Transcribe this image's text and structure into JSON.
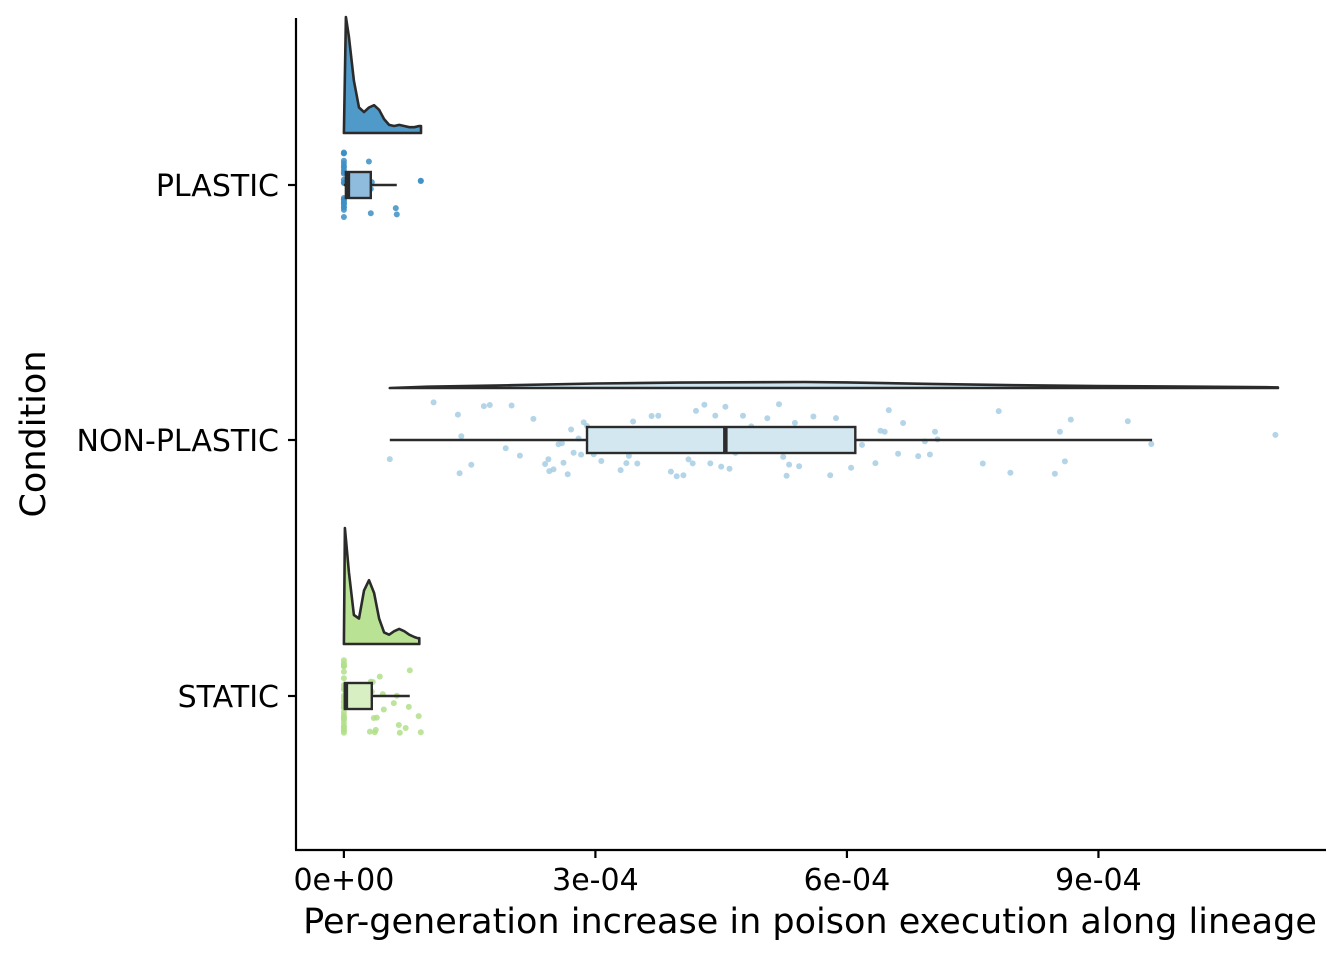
{
  "chart_data": {
    "type": "raincloud",
    "title": "",
    "xlabel": "Per-generation increase in poison execution along lineage",
    "ylabel": "Condition",
    "xlim": [
      -5.71e-05,
      0.0011714
    ],
    "x_ticks": [
      {
        "value": 0,
        "label": "0e+00"
      },
      {
        "value": 0.0003,
        "label": "3e-04"
      },
      {
        "value": 0.0006,
        "label": "6e-04"
      },
      {
        "value": 0.0009,
        "label": "9e-04"
      }
    ],
    "grid": false,
    "legend": "none",
    "series": [
      {
        "name": "PLASTIC",
        "color": "#3d8fc4",
        "box_fill": "#8fbcdd",
        "box": {
          "min": 0,
          "q1": 2.4e-06,
          "median": 4.8e-06,
          "q3": 3.21e-05,
          "max": 6.31e-05
        },
        "density": [
          [
            0,
            0
          ],
          [
            2.4e-06,
            1.0
          ],
          [
            6e-06,
            0.83
          ],
          [
            1.2e-05,
            0.45
          ],
          [
            1.8e-05,
            0.22
          ],
          [
            2.4e-05,
            0.18
          ],
          [
            3e-05,
            0.22
          ],
          [
            3.6e-05,
            0.24
          ],
          [
            4.2e-05,
            0.2
          ],
          [
            4.8e-05,
            0.12
          ],
          [
            5.4e-05,
            0.07
          ],
          [
            6e-05,
            0.06
          ],
          [
            6.6e-05,
            0.07
          ],
          [
            7.2e-05,
            0.06
          ],
          [
            7.8e-05,
            0.05
          ],
          [
            8.4e-05,
            0.05
          ],
          [
            9e-05,
            0.06
          ],
          [
            9.2e-05,
            0.06
          ],
          [
            9.2e-05,
            0
          ]
        ],
        "points": [
          0,
          0,
          0,
          0,
          0,
          0,
          0,
          0,
          0,
          0,
          0,
          0,
          0,
          0,
          0,
          0,
          0,
          0,
          0,
          0,
          0,
          0,
          0,
          0,
          3.21e-05,
          3.33e-05,
          3.21e-05,
          2.98e-05,
          6.19e-05,
          6.31e-05,
          9.17e-05,
          9.17e-05
        ]
      },
      {
        "name": "NON-PLASTIC",
        "color": "#a6cee3",
        "box_fill": "#d3e7f1",
        "box": {
          "min": 5.48e-05,
          "q1": 0.00029,
          "median": 0.000455,
          "q3": 0.00061,
          "max": 0.000964
        },
        "density": [
          [
            5.48e-05,
            0
          ],
          [
            0.0001,
            0.2
          ],
          [
            0.0002,
            0.45
          ],
          [
            0.0003,
            0.72
          ],
          [
            0.0004,
            0.85
          ],
          [
            0.0005,
            0.92
          ],
          [
            0.00055,
            0.95
          ],
          [
            0.0006,
            0.88
          ],
          [
            0.0007,
            0.65
          ],
          [
            0.0008,
            0.45
          ],
          [
            0.0009,
            0.32
          ],
          [
            0.001,
            0.22
          ],
          [
            0.0011,
            0.12
          ],
          [
            0.001114,
            0.1
          ],
          [
            0.001114,
            0
          ]
        ],
        "points": [
          5.48e-05,
          0.000107,
          0.000136,
          0.000138,
          0.00014,
          0.000152,
          0.000167,
          0.000174,
          0.000193,
          0.0002,
          0.00021,
          0.000226,
          0.00024,
          0.000244,
          0.000245,
          0.00025,
          0.000256,
          0.00026,
          0.000262,
          0.000267,
          0.000271,
          0.000274,
          0.00028,
          0.000283,
          0.000286,
          0.00029,
          0.000298,
          0.000303,
          0.000305,
          0.000307,
          0.00031,
          0.000314,
          0.000322,
          0.000326,
          0.00033,
          0.000337,
          0.00034,
          0.000345,
          0.00035,
          0.00036,
          0.000367,
          0.000375,
          0.00038,
          0.000385,
          0.00039,
          0.000397,
          0.0004,
          0.000405,
          0.000411,
          0.000416,
          0.00042,
          0.000425,
          0.00043,
          0.000437,
          0.000443,
          0.00045,
          0.000455,
          0.00046,
          0.000467,
          0.000476,
          0.000486,
          0.000494,
          0.000501,
          0.000505,
          0.000508,
          0.000511,
          0.000515,
          0.000519,
          0.000524,
          0.000528,
          0.000531,
          0.000535,
          0.000538,
          0.000543,
          0.000547,
          0.000554,
          0.00056,
          0.000565,
          0.000575,
          0.00058,
          0.000587,
          0.000596,
          0.000605,
          0.000618,
          0.000634,
          0.00064,
          0.000645,
          0.00065,
          0.000661,
          0.000667,
          0.000685,
          0.000693,
          0.000699,
          0.000705,
          0.000708,
          0.000762,
          0.000781,
          0.000795,
          0.000848,
          0.000854,
          0.00086,
          0.000867,
          0.000935,
          0.000963,
          0.001111
        ]
      },
      {
        "name": "STATIC",
        "color": "#b2df8a",
        "box_fill": "#d8efc4",
        "box": {
          "min": 0,
          "q1": 1.2e-06,
          "median": 2.4e-06,
          "q3": 3.33e-05,
          "max": 7.86e-05
        },
        "density": [
          [
            0,
            0
          ],
          [
            1.2e-06,
            1.0
          ],
          [
            6e-06,
            0.62
          ],
          [
            1.2e-05,
            0.25
          ],
          [
            1.8e-05,
            0.22
          ],
          [
            2.4e-05,
            0.46
          ],
          [
            3e-05,
            0.55
          ],
          [
            3.6e-05,
            0.44
          ],
          [
            4.2e-05,
            0.22
          ],
          [
            4.8e-05,
            0.1
          ],
          [
            5.4e-05,
            0.08
          ],
          [
            6e-05,
            0.11
          ],
          [
            6.6e-05,
            0.13
          ],
          [
            7.2e-05,
            0.11
          ],
          [
            7.8e-05,
            0.08
          ],
          [
            8.4e-05,
            0.06
          ],
          [
            8.8e-05,
            0.05
          ],
          [
            9e-05,
            0.05
          ],
          [
            9e-05,
            0
          ]
        ],
        "points": [
          0,
          0,
          0,
          0,
          0,
          0,
          0,
          0,
          0,
          0,
          0,
          0,
          0,
          0,
          0,
          0,
          0,
          0,
          0,
          0,
          0,
          0,
          0,
          0,
          0,
          0,
          0,
          0,
          0,
          0,
          2.62e-05,
          2.86e-05,
          3.1e-05,
          3.21e-05,
          3.33e-05,
          3.45e-05,
          3.57e-05,
          3.69e-05,
          3.81e-05,
          3.93e-05,
          4.29e-05,
          4.64e-05,
          4.76e-05,
          5.95e-05,
          6.31e-05,
          6.55e-05,
          6.67e-05,
          7.38e-05,
          7.74e-05,
          7.86e-05,
          8.93e-05,
          9.17e-05
        ]
      }
    ]
  }
}
